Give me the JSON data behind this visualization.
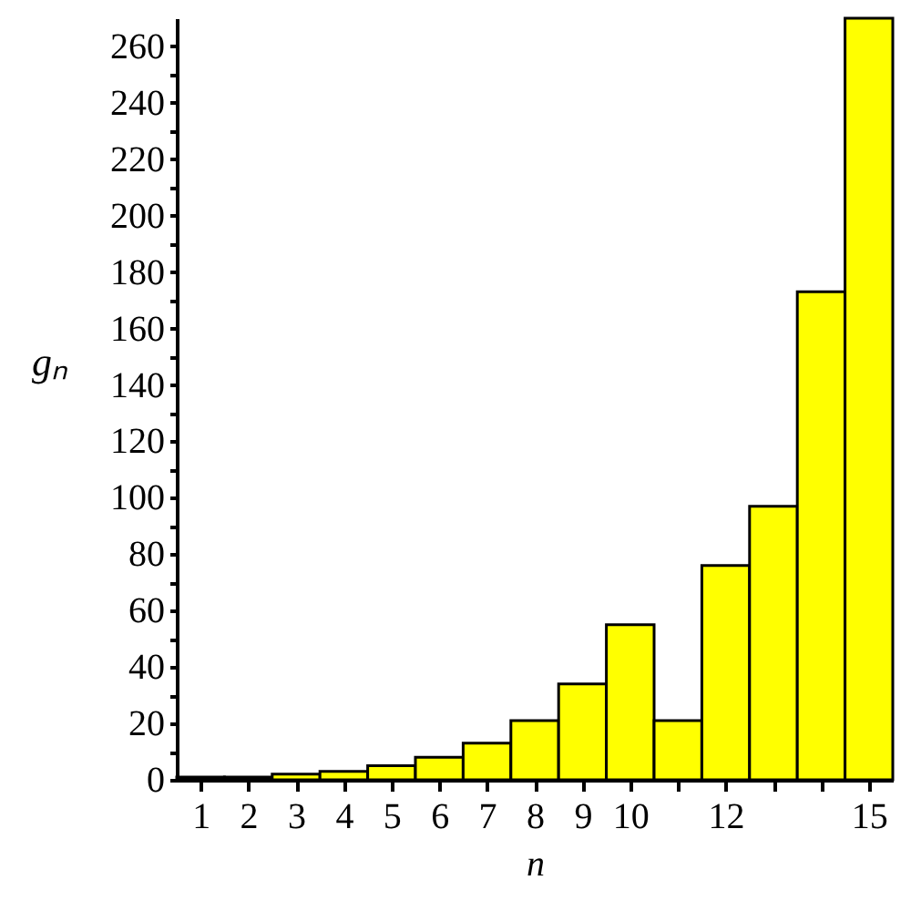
{
  "chart_data": {
    "type": "bar",
    "xlabel": "n",
    "ylabel": "gₙ",
    "x": [
      1,
      2,
      3,
      4,
      5,
      6,
      7,
      8,
      9,
      10,
      11,
      12,
      13,
      14,
      15
    ],
    "values": [
      1,
      1,
      2,
      3,
      5,
      8,
      13,
      21,
      34,
      55,
      21,
      76,
      97,
      173,
      270
    ],
    "color": "#ffff00",
    "xlim": [
      0.5,
      15.5
    ],
    "xticks": [
      1,
      2,
      3,
      4,
      5,
      6,
      7,
      8,
      9,
      10,
      {
        "value": 11,
        "label": null
      },
      12,
      {
        "value": 13,
        "label": null
      },
      {
        "value": 14,
        "label": null
      },
      15
    ],
    "ylim": [
      0,
      270
    ],
    "yticks": [
      0,
      {
        "value": 10,
        "label": null
      },
      20,
      {
        "value": 30,
        "label": null
      },
      40,
      {
        "value": 50,
        "label": null
      },
      60,
      {
        "value": 70,
        "label": null
      },
      80,
      {
        "value": 90,
        "label": null
      },
      100,
      {
        "value": 110,
        "label": null
      },
      120,
      {
        "value": 130,
        "label": null
      },
      140,
      {
        "value": 150,
        "label": null
      },
      160,
      {
        "value": 170,
        "label": null
      },
      180,
      {
        "value": 190,
        "label": null
      },
      200,
      {
        "value": 210,
        "label": null
      },
      220,
      {
        "value": 230,
        "label": null
      },
      240,
      {
        "value": 250,
        "label": null
      },
      260
    ],
    "grid": false
  }
}
